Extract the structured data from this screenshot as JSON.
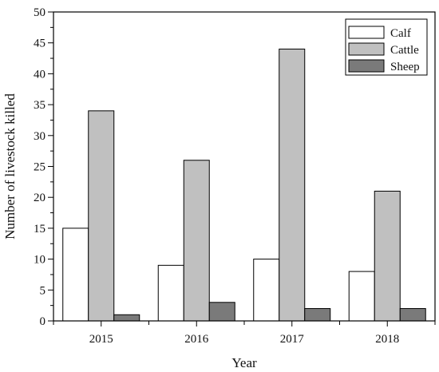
{
  "chart_data": {
    "type": "bar",
    "categories": [
      "2015",
      "2016",
      "2017",
      "2018"
    ],
    "series": [
      {
        "name": "Calf",
        "values": [
          15,
          9,
          10,
          8
        ],
        "color": "#ffffff"
      },
      {
        "name": "Cattle",
        "values": [
          34,
          26,
          44,
          21
        ],
        "color": "#c0c0c0"
      },
      {
        "name": "Sheep",
        "values": [
          1,
          3,
          2,
          2
        ],
        "color": "#7a7a7a"
      }
    ],
    "title": "",
    "xlabel": "Year",
    "ylabel": "Number of livestock killed",
    "ylim": [
      0,
      50
    ],
    "yticks": [
      0,
      5,
      10,
      15,
      20,
      25,
      30,
      35,
      40,
      45,
      50
    ],
    "grid": false,
    "legend_position": "top-right"
  }
}
